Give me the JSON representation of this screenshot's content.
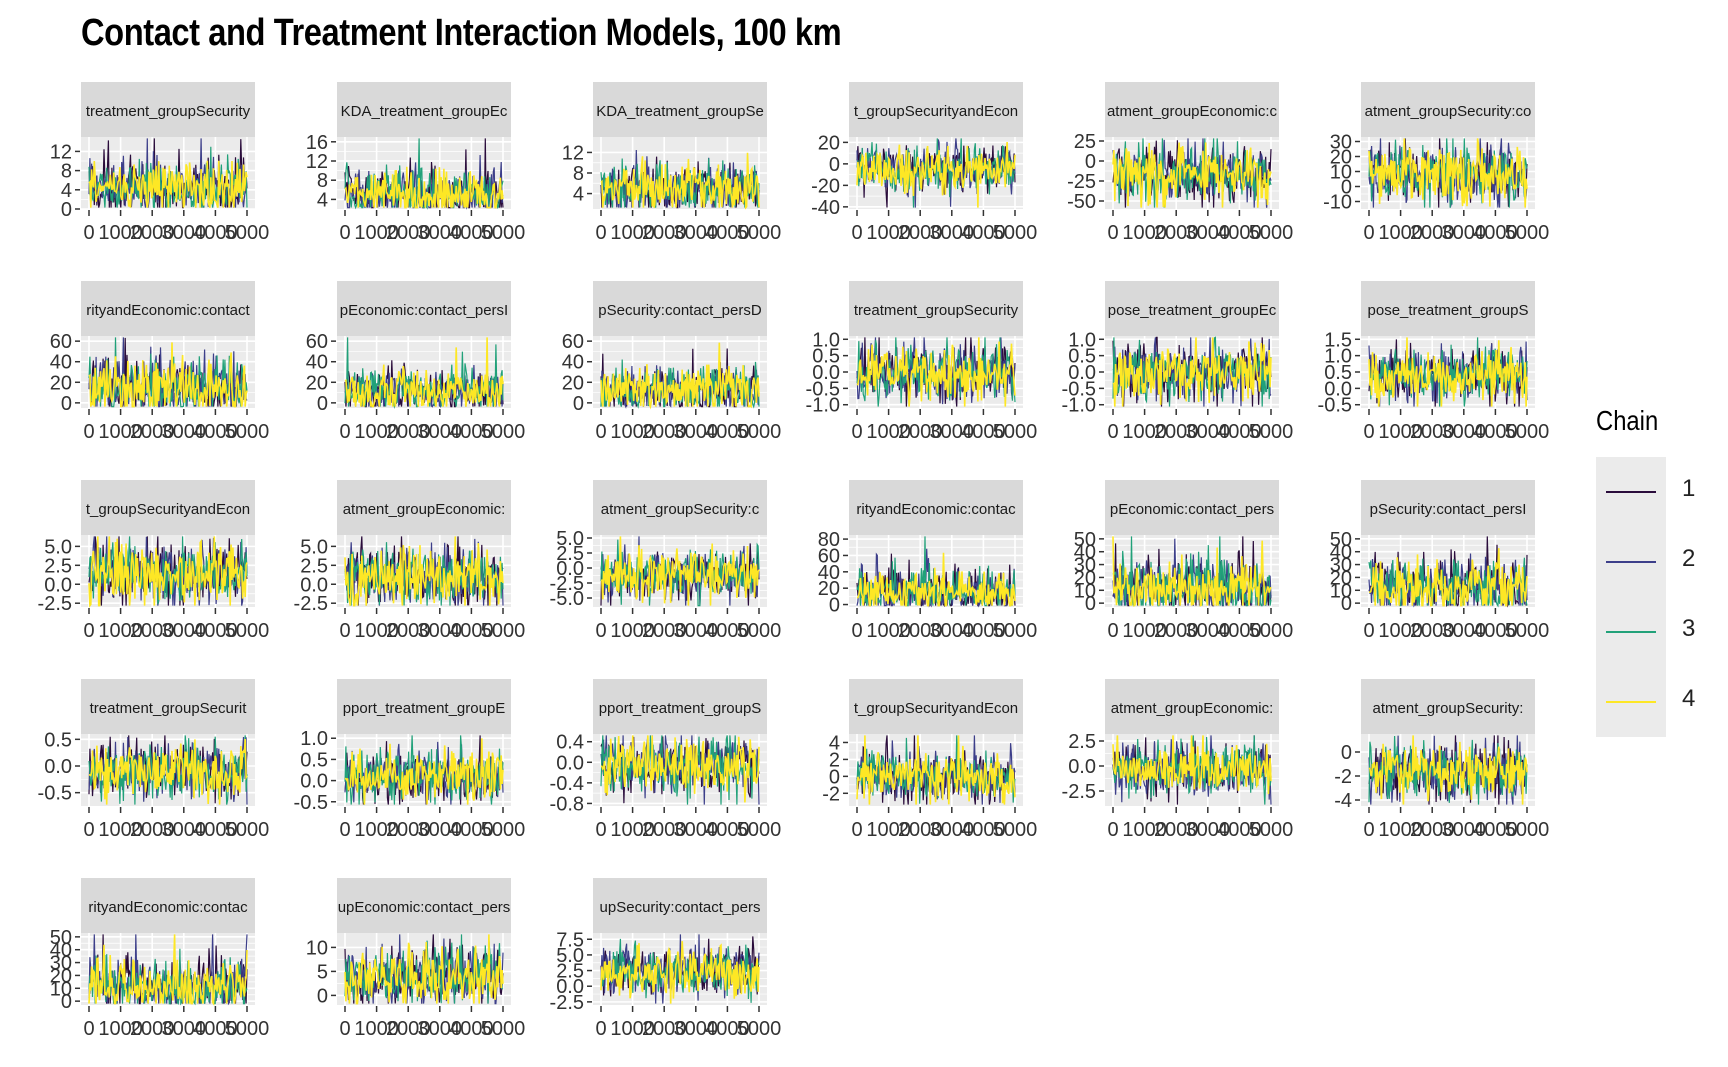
{
  "chart_data": {
    "type": "line",
    "title": "Contact and Treatment Interaction Models, 100 km",
    "legend": {
      "title": "Chain",
      "position": "right",
      "entries": [
        {
          "label": "1",
          "color": "#2a0c3b"
        },
        {
          "label": "2",
          "color": "#3d3f8a"
        },
        {
          "label": "3",
          "color": "#21a179"
        },
        {
          "label": "4",
          "color": "#fde725"
        }
      ]
    },
    "x_tick_labels": [
      "0",
      "1000",
      "2000",
      "3000",
      "4000",
      "5000"
    ],
    "xlim": [
      0,
      5000
    ],
    "panels": [
      {
        "strip": "treatment_groupSecurity",
        "yticks": [
          "0",
          "4",
          "8",
          "12"
        ],
        "ytick_values": [
          0,
          4,
          8,
          12
        ],
        "ylim": [
          0,
          15
        ],
        "center": 4.5,
        "spread": 3.5
      },
      {
        "strip": "KDA_treatment_groupEc",
        "yticks": [
          "4",
          "8",
          "12",
          "16"
        ],
        "ytick_values": [
          4,
          8,
          12,
          16
        ],
        "ylim": [
          2,
          17
        ],
        "center": 5,
        "spread": 3.5
      },
      {
        "strip": "KDA_treatment_groupSe",
        "yticks": [
          "4",
          "8",
          "12"
        ],
        "ytick_values": [
          4,
          8,
          12
        ],
        "ylim": [
          1,
          15
        ],
        "center": 5,
        "spread": 3.2
      },
      {
        "strip": "t_groupSecurityandEcon",
        "yticks": [
          "-40",
          "-20",
          "0",
          "20"
        ],
        "ytick_values": [
          -40,
          -20,
          0,
          20
        ],
        "ylim": [
          -42,
          25
        ],
        "center": -5,
        "spread": 14
      },
      {
        "strip": "atment_groupEconomic:c",
        "yticks": [
          "-50",
          "-25",
          "0",
          "25"
        ],
        "ytick_values": [
          -50,
          -25,
          0,
          25
        ],
        "ylim": [
          -60,
          30
        ],
        "center": -15,
        "spread": 22
      },
      {
        "strip": "atment_groupSecurity:co",
        "yticks": [
          "-10",
          "0",
          "10",
          "20",
          "30"
        ],
        "ytick_values": [
          -10,
          0,
          10,
          20,
          30
        ],
        "ylim": [
          -15,
          33
        ],
        "center": 8,
        "spread": 12
      },
      {
        "strip": "rityandEconomic:contact",
        "yticks": [
          "0",
          "20",
          "40",
          "60"
        ],
        "ytick_values": [
          0,
          20,
          40,
          60
        ],
        "ylim": [
          -5,
          65
        ],
        "center": 15,
        "spread": 18
      },
      {
        "strip": "pEconomic:contact_persI",
        "yticks": [
          "0",
          "20",
          "40",
          "60"
        ],
        "ytick_values": [
          0,
          20,
          40,
          60
        ],
        "ylim": [
          -5,
          65
        ],
        "center": 12,
        "spread": 14
      },
      {
        "strip": "pSecurity:contact_persD",
        "yticks": [
          "0",
          "20",
          "40",
          "60"
        ],
        "ytick_values": [
          0,
          20,
          40,
          60
        ],
        "ylim": [
          -5,
          65
        ],
        "center": 12,
        "spread": 14
      },
      {
        "strip": "treatment_groupSecurity",
        "yticks": [
          "-1.0",
          "-0.5",
          "0.0",
          "0.5",
          "1.0"
        ],
        "ytick_values": [
          -1,
          -0.5,
          0,
          0.5,
          1
        ],
        "ylim": [
          -1.1,
          1.1
        ],
        "center": 0,
        "spread": 0.55
      },
      {
        "strip": "pose_treatment_groupEc",
        "yticks": [
          "-1.0",
          "-0.5",
          "0.0",
          "0.5",
          "1.0"
        ],
        "ytick_values": [
          -1,
          -0.5,
          0,
          0.5,
          1
        ],
        "ylim": [
          -1.1,
          1.1
        ],
        "center": 0,
        "spread": 0.55
      },
      {
        "strip": "pose_treatment_groupS",
        "yticks": [
          "-0.5",
          "0.0",
          "0.5",
          "1.0",
          "1.5"
        ],
        "ytick_values": [
          -0.5,
          0,
          0.5,
          1,
          1.5
        ],
        "ylim": [
          -0.6,
          1.6
        ],
        "center": 0.4,
        "spread": 0.55
      },
      {
        "strip": "t_groupSecurityandEcon",
        "yticks": [
          "-2.5",
          "0.0",
          "2.5",
          "5.0"
        ],
        "ytick_values": [
          -2.5,
          0,
          2.5,
          5
        ],
        "ylim": [
          -3,
          6.5
        ],
        "center": 1.5,
        "spread": 2.5
      },
      {
        "strip": "atment_groupEconomic:",
        "yticks": [
          "-2.5",
          "0.0",
          "2.5",
          "5.0"
        ],
        "ytick_values": [
          -2.5,
          0,
          2.5,
          5
        ],
        "ylim": [
          -3,
          6.5
        ],
        "center": 1,
        "spread": 2.5
      },
      {
        "strip": "atment_groupSecurity:c",
        "yticks": [
          "-5.0",
          "-2.5",
          "0.0",
          "2.5",
          "5.0"
        ],
        "ytick_values": [
          -5,
          -2.5,
          0,
          2.5,
          5
        ],
        "ylim": [
          -6.5,
          5.5
        ],
        "center": -1,
        "spread": 2.5
      },
      {
        "strip": "rityandEconomic:contac",
        "yticks": [
          "0",
          "20",
          "40",
          "60",
          "80"
        ],
        "ytick_values": [
          0,
          20,
          40,
          60,
          80
        ],
        "ylim": [
          -3,
          85
        ],
        "center": 15,
        "spread": 18
      },
      {
        "strip": "pEconomic:contact_pers",
        "yticks": [
          "0",
          "10",
          "20",
          "30",
          "40",
          "50"
        ],
        "ytick_values": [
          0,
          10,
          20,
          30,
          40,
          50
        ],
        "ylim": [
          -3,
          53
        ],
        "center": 12,
        "spread": 14
      },
      {
        "strip": "pSecurity:contact_persI",
        "yticks": [
          "0",
          "10",
          "20",
          "30",
          "40",
          "50"
        ],
        "ytick_values": [
          0,
          10,
          20,
          30,
          40,
          50
        ],
        "ylim": [
          -3,
          53
        ],
        "center": 12,
        "spread": 14
      },
      {
        "strip": "treatment_groupSecurit",
        "yticks": [
          "-0.5",
          "0.0",
          "0.5"
        ],
        "ytick_values": [
          -0.5,
          0,
          0.5
        ],
        "ylim": [
          -0.75,
          0.6
        ],
        "center": -0.1,
        "spread": 0.35
      },
      {
        "strip": "pport_treatment_groupE",
        "yticks": [
          "-0.5",
          "0.0",
          "0.5",
          "1.0"
        ],
        "ytick_values": [
          -0.5,
          0,
          0.5,
          1
        ],
        "ylim": [
          -0.6,
          1.1
        ],
        "center": 0.1,
        "spread": 0.4
      },
      {
        "strip": "pport_treatment_groupS",
        "yticks": [
          "-0.8",
          "-0.4",
          "0.0",
          "0.4"
        ],
        "ytick_values": [
          -0.8,
          -0.4,
          0,
          0.4
        ],
        "ylim": [
          -0.85,
          0.55
        ],
        "center": -0.05,
        "spread": 0.35
      },
      {
        "strip": "t_groupSecurityandEcon",
        "yticks": [
          "-2",
          "0",
          "2",
          "4"
        ],
        "ytick_values": [
          -2,
          0,
          2,
          4
        ],
        "ylim": [
          -3.5,
          5
        ],
        "center": 0,
        "spread": 1.8
      },
      {
        "strip": "atment_groupEconomic:",
        "yticks": [
          "-2.5",
          "0.0",
          "2.5"
        ],
        "ytick_values": [
          -2.5,
          0,
          2.5
        ],
        "ylim": [
          -4,
          3.2
        ],
        "center": -0.3,
        "spread": 1.6
      },
      {
        "strip": "atment_groupSecurity:",
        "yticks": [
          "-4",
          "-2",
          "0"
        ],
        "ytick_values": [
          -4,
          -2,
          0
        ],
        "ylim": [
          -4.5,
          1.5
        ],
        "center": -1.5,
        "spread": 1.4
      },
      {
        "strip": "rityandEconomic:contac",
        "yticks": [
          "0",
          "10",
          "20",
          "30",
          "40",
          "50"
        ],
        "ytick_values": [
          0,
          10,
          20,
          30,
          40,
          50
        ],
        "ylim": [
          -3,
          53
        ],
        "center": 12,
        "spread": 14
      },
      {
        "strip": "upEconomic:contact_pers",
        "yticks": [
          "0",
          "5",
          "10"
        ],
        "ytick_values": [
          0,
          5,
          10
        ],
        "ylim": [
          -2,
          13
        ],
        "center": 4,
        "spread": 4
      },
      {
        "strip": "upSecurity:contact_pers",
        "yticks": [
          "-2.5",
          "0.0",
          "2.5",
          "5.0",
          "7.5"
        ],
        "ytick_values": [
          -2.5,
          0,
          2.5,
          5,
          7.5
        ],
        "ylim": [
          -3,
          8.5
        ],
        "center": 2.5,
        "spread": 2.6
      }
    ]
  }
}
